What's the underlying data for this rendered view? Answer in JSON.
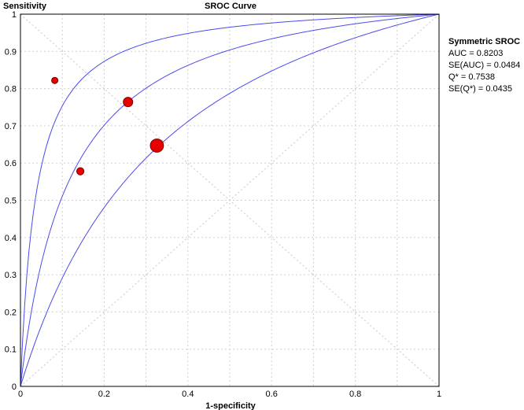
{
  "chart_data": {
    "type": "scatter",
    "title": "SROC Curve",
    "xlabel": "1-specificity",
    "ylabel": "Sensitivity",
    "xlim": [
      0,
      1
    ],
    "ylim": [
      0,
      1
    ],
    "xticks": [
      "0",
      "0.2",
      "0.4",
      "0.6",
      "0.8",
      "1"
    ],
    "yticks": [
      "0",
      "0.1",
      "0.2",
      "0.3",
      "0.4",
      "0.5",
      "0.6",
      "0.7",
      "0.8",
      "0.9",
      "1"
    ],
    "grid": true,
    "curve_color": "#4a4af0",
    "point_color": "#e60000",
    "curves": [
      {
        "dor": 27.5
      },
      {
        "dor": 9.4
      },
      {
        "dor": 3.7
      }
    ],
    "points": [
      {
        "x": 0.082,
        "y": 0.822,
        "weight": 1.0
      },
      {
        "x": 0.143,
        "y": 0.578,
        "weight": 1.15
      },
      {
        "x": 0.257,
        "y": 0.764,
        "weight": 1.5
      },
      {
        "x": 0.326,
        "y": 0.647,
        "weight": 2.1
      }
    ],
    "stats": {
      "heading": "Symmetric SROC",
      "auc": "AUC = 0.8203",
      "se_auc": "SE(AUC) = 0.0484",
      "q": "Q* = 0.7538",
      "se_q": "SE(Q*) = 0.0435"
    }
  }
}
